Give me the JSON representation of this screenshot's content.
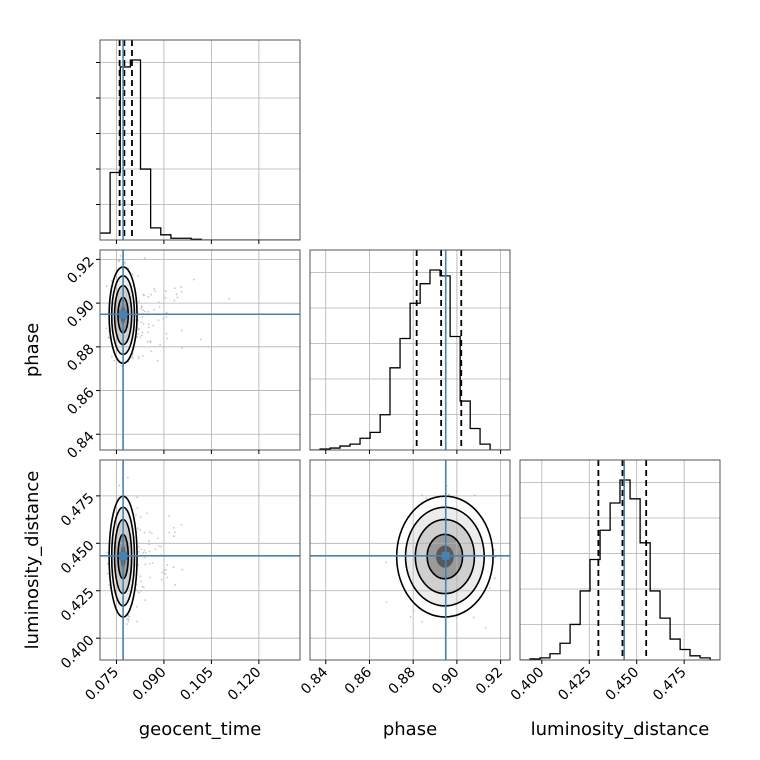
{
  "chart_data": {
    "type": "corner",
    "parameters": [
      "geocent_time",
      "phase",
      "luminosity_distance"
    ],
    "axis_labels": {
      "geocent_time": "geocent_time",
      "phase": "phase",
      "luminosity_distance": "luminosity_distance"
    },
    "ranges": {
      "geocent_time": [
        0.0698,
        0.133
      ],
      "phase": [
        0.8328,
        0.9243
      ],
      "luminosity_distance": [
        0.3885,
        0.4939
      ]
    },
    "ticks": {
      "geocent_time": {
        "values": [
          0.075,
          0.09,
          0.105,
          0.12
        ],
        "labels": [
          "0.075",
          "0.090",
          "0.105",
          "0.120"
        ]
      },
      "phase": {
        "values": [
          0.84,
          0.86,
          0.88,
          0.9,
          0.92
        ],
        "labels": [
          "0.84",
          "0.86",
          "0.88",
          "0.90",
          "0.92"
        ]
      },
      "luminosity_distance": {
        "values": [
          0.4,
          0.425,
          0.45,
          0.475
        ],
        "labels": [
          "0.400",
          "0.425",
          "0.450",
          "0.475"
        ]
      }
    },
    "truths": {
      "geocent_time": 0.0771,
      "phase": 0.8949,
      "luminosity_distance": 0.4434
    },
    "colors": {
      "truth": "#4682b4",
      "histogram": "#000000",
      "points": "#9a9a9a",
      "grid": "#b0b0b0"
    },
    "grid": true,
    "histograms": {
      "geocent_time": {
        "edges": [
          0.0698,
          0.073,
          0.0762,
          0.0794,
          0.0826,
          0.0858,
          0.089,
          0.0922,
          0.0954,
          0.0986,
          0.1018,
          0.105,
          0.1082,
          0.1114,
          0.1146,
          0.1178,
          0.121,
          0.1242,
          0.1274,
          0.1306,
          0.133
        ],
        "counts": [
          0.04,
          0.39,
          1.0,
          1.04,
          0.41,
          0.07,
          0.03,
          0.01,
          0.01,
          0.004,
          0,
          0,
          0,
          0,
          0,
          0,
          0,
          0,
          0,
          0
        ],
        "quantiles": [
          0.076,
          0.0775,
          0.0799
        ]
      },
      "phase": {
        "edges": [
          0.8328,
          0.8374,
          0.842,
          0.8465,
          0.8511,
          0.8557,
          0.8603,
          0.8649,
          0.8694,
          0.874,
          0.8786,
          0.8832,
          0.8877,
          0.8923,
          0.8969,
          0.9015,
          0.9061,
          0.9106,
          0.9152,
          0.9198,
          0.9243
        ],
        "counts": [
          0,
          0.005,
          0.01,
          0.02,
          0.03,
          0.06,
          0.09,
          0.18,
          0.42,
          0.57,
          0.75,
          0.85,
          0.92,
          0.89,
          0.58,
          0.25,
          0.11,
          0.03,
          0,
          0
        ],
        "quantiles": [
          0.8816,
          0.8928,
          0.902
        ]
      },
      "luminosity_distance": {
        "edges": [
          0.3885,
          0.3938,
          0.3991,
          0.4043,
          0.4096,
          0.4149,
          0.4202,
          0.4254,
          0.4307,
          0.436,
          0.4412,
          0.4465,
          0.4518,
          0.4571,
          0.4623,
          0.4676,
          0.4729,
          0.4781,
          0.4834,
          0.4887,
          0.4939
        ],
        "counts": [
          0,
          0.005,
          0.01,
          0.03,
          0.08,
          0.17,
          0.33,
          0.48,
          0.62,
          0.75,
          0.86,
          0.77,
          0.56,
          0.33,
          0.2,
          0.1,
          0.05,
          0.02,
          0.01,
          0
        ],
        "quantiles": [
          0.4298,
          0.4425,
          0.455
        ]
      }
    },
    "density_2d": {
      "phase__geocent_time": {
        "center": [
          0.0771,
          0.8945
        ],
        "sigma": [
          0.0018,
          0.009
        ]
      },
      "luminosity_distance__geocent_time": {
        "center": [
          0.0771,
          0.443
        ],
        "sigma": [
          0.0018,
          0.013
        ]
      },
      "luminosity_distance__phase": {
        "center": [
          0.8945,
          0.443
        ],
        "sigma": [
          0.009,
          0.013
        ]
      }
    }
  }
}
